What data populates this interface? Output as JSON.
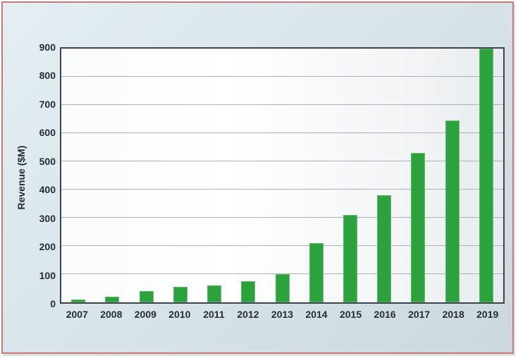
{
  "chart_data": {
    "type": "bar",
    "title": "",
    "xlabel": "",
    "ylabel": "Revenue ($M)",
    "categories": [
      "2007",
      "2008",
      "2009",
      "2010",
      "2011",
      "2012",
      "2013",
      "2014",
      "2015",
      "2016",
      "2017",
      "2018",
      "2019"
    ],
    "values": [
      10,
      20,
      40,
      55,
      60,
      75,
      100,
      210,
      310,
      380,
      530,
      645,
      900
    ],
    "ylim": [
      0,
      900
    ],
    "yticks": [
      0,
      100,
      200,
      300,
      400,
      500,
      600,
      700,
      800,
      900
    ],
    "grid": "horizontal-gridlines-on",
    "legend": "none",
    "bar_color": "#2ba23c",
    "gridline_color": "#aab2b8",
    "frame_color": "#3c434b",
    "panel_border_color": "#c87b76",
    "panel_background_top": "#e4eef3",
    "panel_background_bottom": "#cbd8de",
    "text_color": "#262c33"
  }
}
